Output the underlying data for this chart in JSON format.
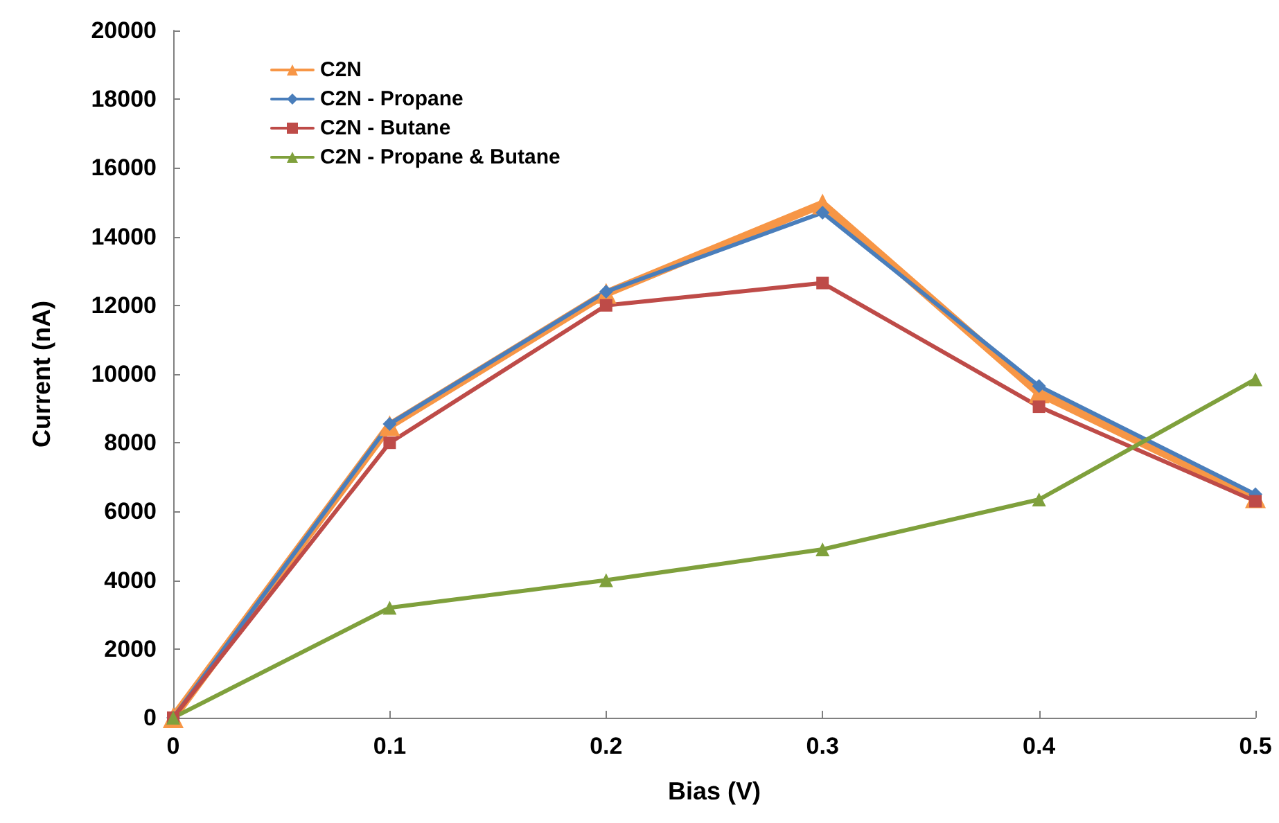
{
  "chart_data": {
    "type": "line",
    "xlabel": "Bias (V)",
    "ylabel": "Current (nA)",
    "x": [
      0,
      0.1,
      0.2,
      0.3,
      0.4,
      0.5
    ],
    "xlim": [
      0,
      0.5
    ],
    "xticks": [
      0,
      0.1,
      0.2,
      0.3,
      0.4,
      0.5
    ],
    "ylim": [
      0,
      20000
    ],
    "yticks": [
      0,
      2000,
      4000,
      6000,
      8000,
      10000,
      12000,
      14000,
      16000,
      18000,
      20000
    ],
    "grid": false,
    "legend": "top left",
    "series": [
      {
        "name": "C2N",
        "color": "#f79646",
        "marker": "triangle",
        "values": [
          0,
          8500,
          12350,
          14950,
          9450,
          6400
        ]
      },
      {
        "name": "C2N - Propane",
        "color": "#4a7ebb",
        "marker": "diamond",
        "values": [
          0,
          8550,
          12400,
          14700,
          9650,
          6500
        ]
      },
      {
        "name": "C2N - Butane",
        "color": "#be4b48",
        "marker": "square",
        "values": [
          0,
          8000,
          12000,
          12650,
          9050,
          6300
        ]
      },
      {
        "name": "C2N - Propane & Butane",
        "color": "#7fa03c",
        "marker": "triangle",
        "values": [
          0,
          3200,
          4000,
          4900,
          6350,
          9850
        ]
      }
    ]
  }
}
